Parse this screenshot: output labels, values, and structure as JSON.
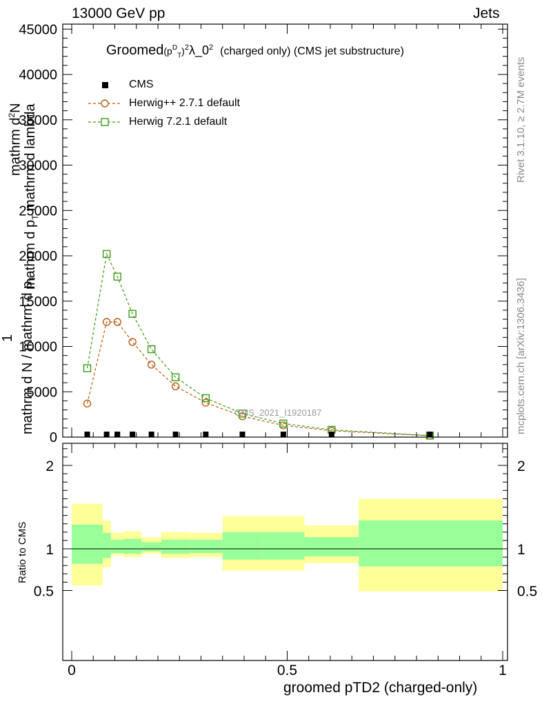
{
  "header": {
    "left": "13000 GeV pp",
    "right": "Jets"
  },
  "side_labels": {
    "top": "Rivet 3.1.10, ≥ 2.7M events",
    "bottom": "mcplots.cern.ch [arXiv:1306.3436]"
  },
  "title": {
    "prefix": "Groomed",
    "p": "(p",
    "sup_d": "D",
    "sub_t": "T",
    "close": ")",
    "sq": "2",
    "lambda": "λ_0",
    "sq2": "2",
    "suffix": "(charged only) (CMS jet substructure)"
  },
  "watermark": "CMS_2021_I1920187",
  "ylabel_main": {
    "one": "1",
    "num": "mathrm d",
    "num_sup": "2",
    "num_rest": "N",
    "den_full": "mathrm d N / mathrm d p",
    "den_sub": "T",
    "den_rest": "mathrm d",
    "frac_top": "mathrm d",
    "frac_mid": "p",
    "frac_sub": "T",
    "frac_end": "mathrm d lambda"
  },
  "ylabel_ratio": "Ratio to CMS",
  "xlabel": "groomed pTD2 (charged-only)",
  "colors": {
    "herwigpp": "#b85a0e",
    "herwig7": "#3a9a14",
    "band_outer": "#ffff99",
    "band_inner": "#99ff99",
    "data": "#000000"
  },
  "chart_data": {
    "type": "line",
    "title": "Groomed (p_T^D)^2 λ_0^2 (charged only) (CMS jet substructure)",
    "xlabel": "groomed pTD2 (charged-only)",
    "xlim": [
      0,
      1
    ],
    "main_ylim": [
      0,
      45000
    ],
    "main_yticks": [
      0,
      5000,
      10000,
      15000,
      20000,
      25000,
      30000,
      35000,
      40000,
      45000
    ],
    "main_ytick_labels": [
      "0",
      "5000",
      "10000",
      "15000",
      "20000",
      "25000",
      "30000",
      "35000",
      "40000",
      "45000"
    ],
    "ratio_ylim": [
      0.35,
      2.3
    ],
    "ratio_yticks": [
      0.5,
      1,
      2
    ],
    "ratio_ytick_labels": [
      "0.5",
      "1",
      "2"
    ],
    "xticks": [
      0,
      0.5,
      1
    ],
    "xtick_labels": [
      "0",
      "0.5",
      "1"
    ],
    "legend_position": "top-left",
    "series": [
      {
        "name": "CMS",
        "marker": "filled-square",
        "x": [
          0.036,
          0.081,
          0.106,
          0.141,
          0.185,
          0.241,
          0.311,
          0.396,
          0.491,
          0.603,
          0.831
        ],
        "y": [
          150,
          150,
          150,
          150,
          150,
          150,
          150,
          150,
          150,
          150,
          100
        ]
      },
      {
        "name": "Herwig++ 2.7.1 default",
        "marker": "open-circle",
        "x": [
          0.036,
          0.081,
          0.106,
          0.141,
          0.185,
          0.241,
          0.311,
          0.396,
          0.491,
          0.603,
          0.831
        ],
        "y": [
          3700,
          12700,
          12700,
          10500,
          8000,
          5600,
          3800,
          2300,
          1300,
          700,
          150
        ]
      },
      {
        "name": "Herwig 7.2.1 default",
        "marker": "open-square",
        "x": [
          0.036,
          0.081,
          0.106,
          0.141,
          0.185,
          0.241,
          0.311,
          0.396,
          0.491,
          0.603,
          0.831
        ],
        "y": [
          7600,
          20200,
          17700,
          13600,
          9700,
          6600,
          4300,
          2600,
          1500,
          800,
          170
        ]
      }
    ],
    "ratio_bands": {
      "edges": [
        0,
        0.072,
        0.091,
        0.12,
        0.162,
        0.208,
        0.274,
        0.35,
        0.442,
        0.54,
        0.666,
        1
      ],
      "outer_lo": [
        0.56,
        0.78,
        0.92,
        0.9,
        0.94,
        0.89,
        0.9,
        0.74,
        0.74,
        0.83,
        0.49
      ],
      "outer_hi": [
        1.54,
        1.34,
        1.19,
        1.21,
        1.14,
        1.2,
        1.19,
        1.39,
        1.39,
        1.28,
        1.6
      ],
      "inner_lo": [
        0.82,
        0.89,
        0.95,
        0.94,
        0.97,
        0.94,
        0.95,
        0.87,
        0.87,
        0.91,
        0.79
      ],
      "inner_hi": [
        1.29,
        1.19,
        1.11,
        1.12,
        1.08,
        1.11,
        1.11,
        1.2,
        1.2,
        1.14,
        1.34
      ]
    }
  }
}
